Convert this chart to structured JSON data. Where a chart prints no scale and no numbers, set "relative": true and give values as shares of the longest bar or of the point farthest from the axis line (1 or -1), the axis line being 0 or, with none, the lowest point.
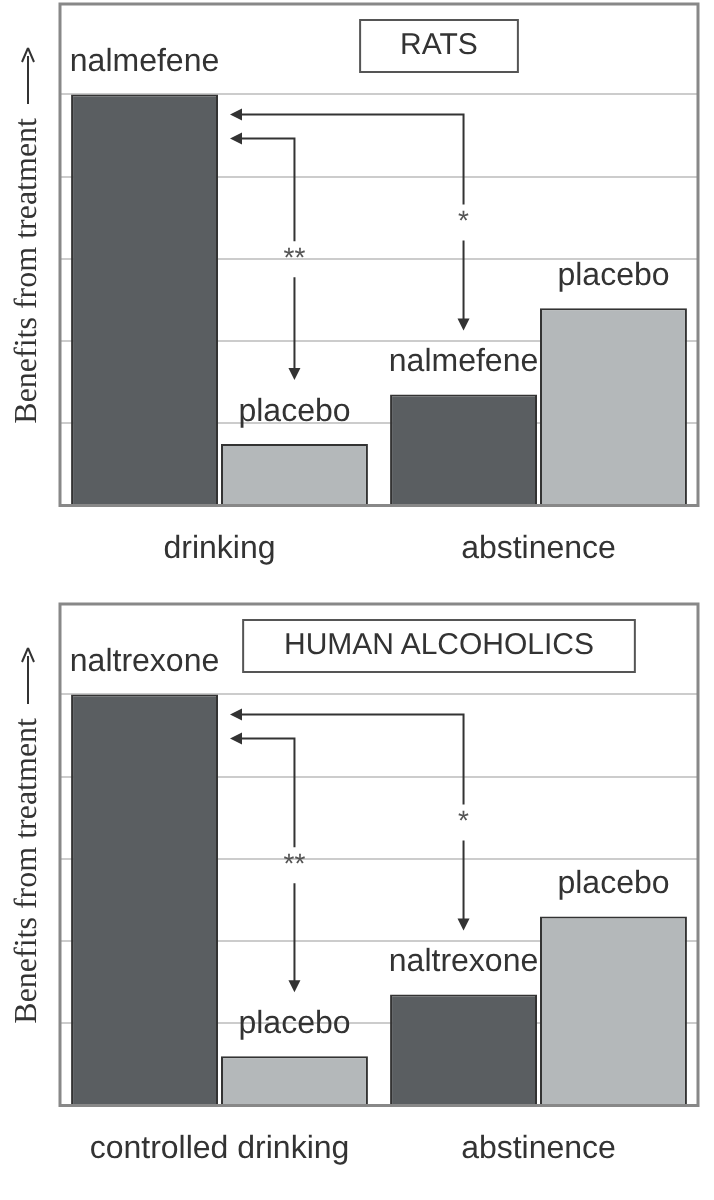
{
  "chart_data": [
    {
      "type": "bar",
      "title": "RATS",
      "ylabel": "Benefits from treatment",
      "categories": [
        "drinking",
        "abstinence"
      ],
      "relative": true,
      "grid": "y",
      "annotations": [
        "**",
        "*"
      ],
      "series": [
        {
          "name": "nalmefene",
          "color": "#5a5e61",
          "values": [
            1,
            0.27
          ]
        },
        {
          "name": "placebo",
          "color": "#b4b8ba",
          "values": [
            0.15,
            0.48
          ]
        }
      ]
    },
    {
      "type": "bar",
      "title": "HUMAN ALCOHOLICS",
      "ylabel": "Benefits from treatment",
      "categories": [
        "controlled drinking",
        "abstinence"
      ],
      "relative": true,
      "grid": "y",
      "annotations": [
        "**",
        "*"
      ],
      "series": [
        {
          "name": "naltrexone",
          "color": "#5a5e61",
          "values": [
            1,
            0.27
          ]
        },
        {
          "name": "placebo",
          "color": "#b4b8ba",
          "values": [
            0.12,
            0.46
          ]
        }
      ]
    }
  ]
}
